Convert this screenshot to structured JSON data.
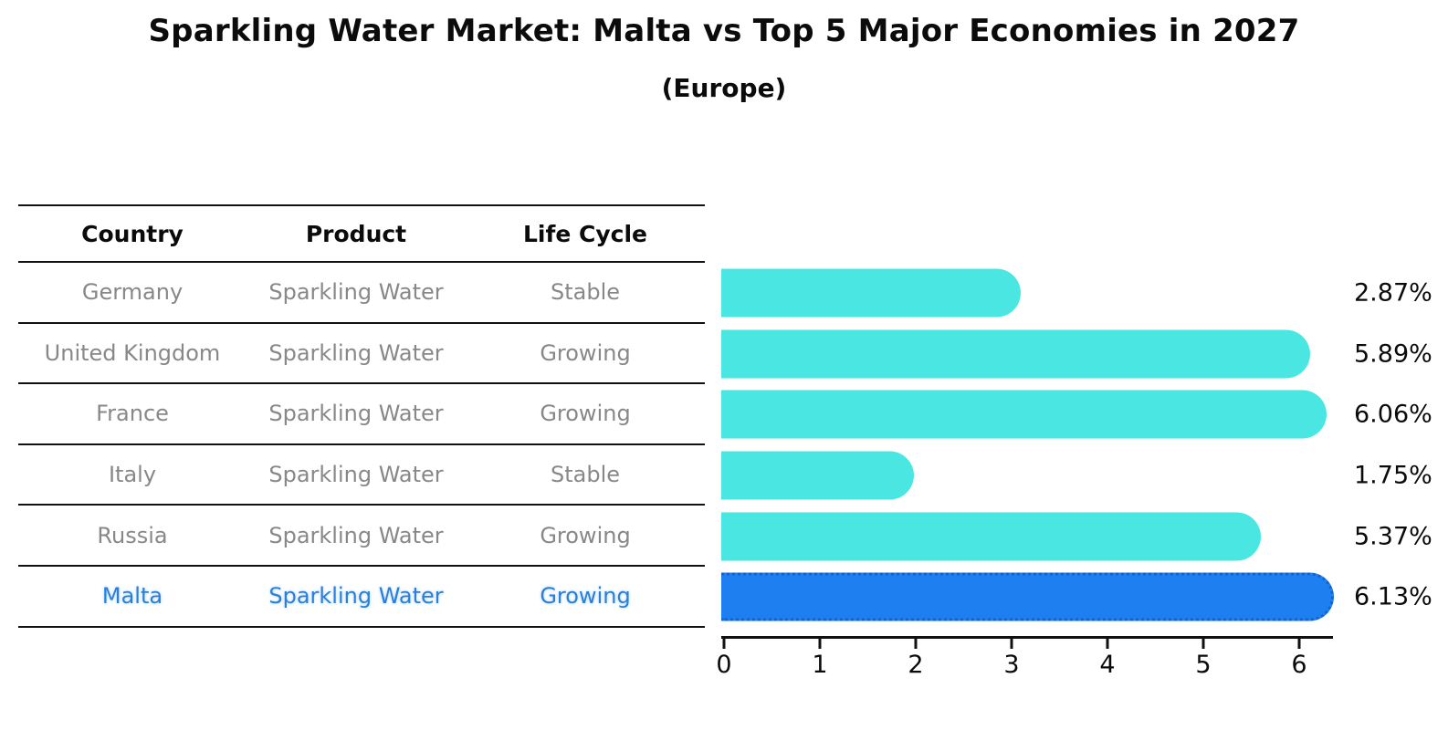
{
  "title": "Sparkling Water Market: Malta vs Top 5 Major Economies in 2027",
  "subtitle": "(Europe)",
  "colors": {
    "bar": "#4ae7e2",
    "highlight_bar": "#1e80f0",
    "highlight_bar_border": "#1263cf",
    "table_text": "#888888",
    "highlight_text": "#2b7fd9",
    "header_text": "#0b0b0b",
    "value_label_text": "#0b0b0b"
  },
  "table": {
    "headers": [
      "Country",
      "Product",
      "Life Cycle"
    ],
    "rows": [
      {
        "country": "Germany",
        "product": "Sparkling Water",
        "life_cycle": "Stable",
        "highlighted": false
      },
      {
        "country": "United Kingdom",
        "product": "Sparkling Water",
        "life_cycle": "Growing",
        "highlighted": false
      },
      {
        "country": "France",
        "product": "Sparkling Water",
        "life_cycle": "Growing",
        "highlighted": false
      },
      {
        "country": "Italy",
        "product": "Sparkling Water",
        "life_cycle": "Stable",
        "highlighted": false
      },
      {
        "country": "Russia",
        "product": "Sparkling Water",
        "life_cycle": "Growing",
        "highlighted": false
      },
      {
        "country": "Malta",
        "product": "Sparkling Water",
        "life_cycle": "Growing",
        "highlighted": true
      }
    ]
  },
  "chart_data": {
    "type": "bar",
    "orientation": "horizontal",
    "title": "Sparkling Water Market: Malta vs Top 5 Major Economies in 2027",
    "subtitle": "(Europe)",
    "categories": [
      "Germany",
      "United Kingdom",
      "France",
      "Italy",
      "Russia",
      "Malta"
    ],
    "values": [
      2.87,
      5.89,
      6.06,
      1.75,
      5.37,
      6.13
    ],
    "value_labels": [
      "2.87%",
      "5.89%",
      "6.06%",
      "1.75%",
      "5.37%",
      "6.13%"
    ],
    "highlight_index": 5,
    "xlabel": "",
    "ylabel": "",
    "xlim": [
      0,
      6.35
    ],
    "xticks": [
      0,
      1,
      2,
      3,
      4,
      5,
      6
    ],
    "grid": false,
    "legend": "none"
  }
}
